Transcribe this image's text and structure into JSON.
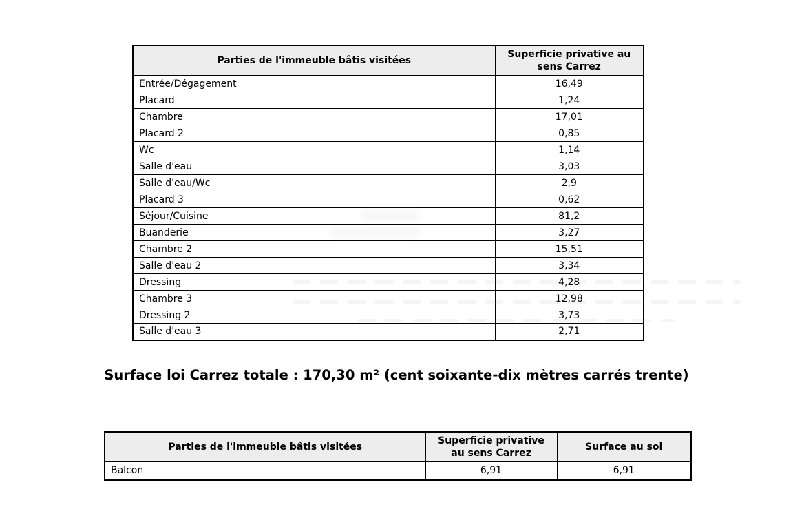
{
  "colors": {
    "page_background": "#ffffff",
    "header_background": "#ededed",
    "border": "#000000",
    "text": "#000000"
  },
  "table1": {
    "headers": [
      "Parties de l'immeuble bâtis visitées",
      "Superficie privative au sens Carrez"
    ],
    "rows": [
      [
        "Entrée/Dégagement",
        "16,49"
      ],
      [
        "Placard",
        "1,24"
      ],
      [
        "Chambre",
        "17,01"
      ],
      [
        "Placard 2",
        "0,85"
      ],
      [
        "Wc",
        "1,14"
      ],
      [
        "Salle d'eau",
        "3,03"
      ],
      [
        "Salle d'eau/Wc",
        "2,9"
      ],
      [
        "Placard 3",
        "0,62"
      ],
      [
        "Séjour/Cuisine",
        "81,2"
      ],
      [
        "Buanderie",
        "3,27"
      ],
      [
        "Chambre 2",
        "15,51"
      ],
      [
        "Salle d'eau 2",
        "3,34"
      ],
      [
        "Dressing",
        "4,28"
      ],
      [
        "Chambre 3",
        "12,98"
      ],
      [
        "Dressing 2",
        "3,73"
      ],
      [
        "Salle d'eau 3",
        "2,71"
      ]
    ]
  },
  "summary": {
    "text": "Surface loi Carrez totale : 170,30 m² (cent soixante-dix mètres carrés trente)"
  },
  "table2": {
    "headers": [
      "Parties de l'immeuble bâtis visitées",
      "Superficie privative au sens Carrez",
      "Surface au sol"
    ],
    "rows": [
      [
        "Balcon",
        "6,91",
        "6,91"
      ]
    ]
  }
}
